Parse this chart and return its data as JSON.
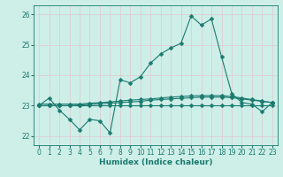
{
  "title": "",
  "xlabel": "Humidex (Indice chaleur)",
  "background_color": "#ceeee8",
  "grid_color": "#e0c8d0",
  "line_color": "#1a7a6e",
  "xlim": [
    -0.5,
    23.5
  ],
  "ylim": [
    21.7,
    26.3
  ],
  "yticks": [
    22,
    23,
    24,
    25,
    26
  ],
  "xticks": [
    0,
    1,
    2,
    3,
    4,
    5,
    6,
    7,
    8,
    9,
    10,
    11,
    12,
    13,
    14,
    15,
    16,
    17,
    18,
    19,
    20,
    21,
    22,
    23
  ],
  "series": [
    [
      23.0,
      23.25,
      22.85,
      22.55,
      22.2,
      22.55,
      22.5,
      22.1,
      23.85,
      23.75,
      23.95,
      24.4,
      24.7,
      24.9,
      25.05,
      25.95,
      25.65,
      25.85,
      24.6,
      23.4,
      23.1,
      23.05,
      22.8,
      23.1
    ],
    [
      23.05,
      23.05,
      23.05,
      23.05,
      23.05,
      23.08,
      23.1,
      23.12,
      23.15,
      23.18,
      23.2,
      23.22,
      23.25,
      23.28,
      23.3,
      23.32,
      23.33,
      23.33,
      23.33,
      23.3,
      23.25,
      23.2,
      23.15,
      23.1
    ],
    [
      23.0,
      23.0,
      23.0,
      23.0,
      23.02,
      23.04,
      23.06,
      23.08,
      23.1,
      23.12,
      23.14,
      23.18,
      23.2,
      23.22,
      23.24,
      23.26,
      23.28,
      23.28,
      23.28,
      23.26,
      23.22,
      23.18,
      23.14,
      23.1
    ],
    [
      23.0,
      23.0,
      23.0,
      23.0,
      23.0,
      23.0,
      23.0,
      23.0,
      23.0,
      23.0,
      23.0,
      23.0,
      23.0,
      23.0,
      23.0,
      23.0,
      23.0,
      23.0,
      23.0,
      23.0,
      23.0,
      23.0,
      23.0,
      23.0
    ]
  ],
  "markersize": 2.5,
  "linewidth": 0.8,
  "tick_fontsize": 5.5,
  "xlabel_fontsize": 6.5
}
